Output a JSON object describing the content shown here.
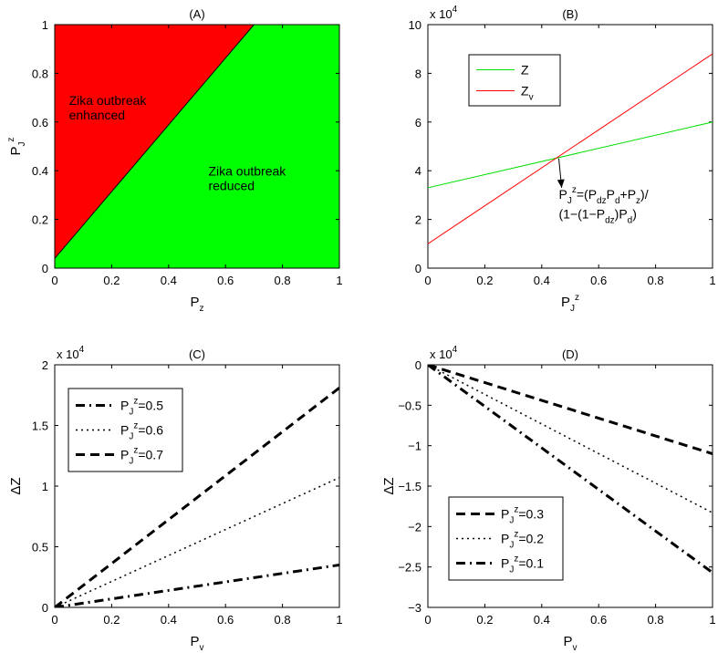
{
  "chart_data": [
    {
      "type": "area",
      "title": "(A)",
      "xlabel": "P",
      "xlabel_sub": "z",
      "ylabel": "P",
      "ylabel_sub": "J",
      "ylabel_sup": "z",
      "xlim": [
        0,
        1
      ],
      "ylim": [
        0,
        1
      ],
      "xticks": [
        0,
        0.2,
        0.4,
        0.6,
        0.8,
        1
      ],
      "yticks": [
        0,
        0.2,
        0.4,
        0.6,
        0.8,
        1
      ],
      "tick_labels_x": [
        "0",
        "0.2",
        "0.4",
        "0.6",
        "0.8",
        "1"
      ],
      "tick_labels_y": [
        "0",
        "0.2",
        "0.4",
        "0.6",
        "0.8",
        "1"
      ],
      "boundary": {
        "x": [
          0,
          0.7
        ],
        "y": [
          0.04,
          1
        ]
      },
      "regions": [
        {
          "name": "upper",
          "color": "#ff0000",
          "label_lines": [
            "Zika outbreak",
            "enhanced"
          ]
        },
        {
          "name": "lower",
          "color": "#00ff00",
          "label_lines": [
            "Zika outbreak",
            "reduced"
          ]
        }
      ]
    },
    {
      "type": "line",
      "title": "(B)",
      "multiplier": "x 10",
      "multiplier_exp": "4",
      "xlabel": "P",
      "xlabel_sub": "J",
      "xlabel_sup": "z",
      "xlim": [
        0,
        1
      ],
      "ylim": [
        0,
        10
      ],
      "xticks": [
        0,
        0.2,
        0.4,
        0.6,
        0.8,
        1
      ],
      "yticks": [
        0,
        2,
        4,
        6,
        8,
        10
      ],
      "tick_labels_x": [
        "0",
        "0.2",
        "0.4",
        "0.6",
        "0.8",
        "1"
      ],
      "tick_labels_y": [
        "0",
        "2",
        "4",
        "6",
        "8",
        "10"
      ],
      "legend_position": "top-left",
      "series": [
        {
          "name": "Z",
          "x": [
            0,
            1
          ],
          "values": [
            3.3,
            6.0
          ],
          "color": "#00dd00",
          "style": "solid"
        },
        {
          "name": "Z",
          "name_sub": "v",
          "x": [
            0,
            1
          ],
          "values": [
            1.0,
            8.8
          ],
          "color": "#ff0000",
          "style": "solid"
        }
      ],
      "annotation": {
        "point": [
          0.46,
          4.5
        ],
        "line1": {
          "a": "P",
          "a_sub": "J",
          "a_sup": "z",
          "b": "=(P",
          "c_sub": "dz",
          "d": "P",
          "d_sub": "d",
          "e": "+P",
          "e_sub": "z",
          "f": ")/"
        },
        "line2": {
          "a": "(1−(1−P",
          "a_sub": "dz",
          "b": ")P",
          "b_sub": "d",
          "c": ")"
        }
      }
    },
    {
      "type": "line",
      "title": "(C)",
      "multiplier": "x 10",
      "multiplier_exp": "4",
      "xlabel": "P",
      "xlabel_sub": "v",
      "ylabel": "ΔZ",
      "xlim": [
        0,
        1
      ],
      "ylim": [
        0,
        2
      ],
      "xticks": [
        0,
        0.2,
        0.4,
        0.6,
        0.8,
        1
      ],
      "yticks": [
        0,
        0.5,
        1,
        1.5,
        2
      ],
      "tick_labels_x": [
        "0",
        "0.2",
        "0.4",
        "0.6",
        "0.8",
        "1"
      ],
      "tick_labels_y": [
        "0",
        "0.5",
        "1",
        "1.5",
        "2"
      ],
      "legend_position": "top-left",
      "series": [
        {
          "name": "=0.5",
          "x": [
            0,
            1
          ],
          "values": [
            0,
            0.35
          ],
          "style": "dashdot"
        },
        {
          "name": "=0.6",
          "x": [
            0,
            1
          ],
          "values": [
            0,
            1.07
          ],
          "style": "dotted"
        },
        {
          "name": "=0.7",
          "x": [
            0,
            1
          ],
          "values": [
            0,
            1.81
          ],
          "style": "dashed"
        }
      ]
    },
    {
      "type": "line",
      "title": "(D)",
      "multiplier": "x 10",
      "multiplier_exp": "4",
      "xlabel": "P",
      "xlabel_sub": "v",
      "ylabel": "ΔZ",
      "xlim": [
        0,
        1
      ],
      "ylim": [
        -3,
        0
      ],
      "xticks": [
        0,
        0.2,
        0.4,
        0.6,
        0.8,
        1
      ],
      "yticks": [
        -3,
        -2.5,
        -2,
        -1.5,
        -1,
        -0.5,
        0
      ],
      "tick_labels_x": [
        "0",
        "0.2",
        "0.4",
        "0.6",
        "0.8",
        "1"
      ],
      "tick_labels_y": [
        "−3",
        "−2.5",
        "−2",
        "−1.5",
        "−1",
        "−0.5",
        "0"
      ],
      "legend_position": "bottom-left",
      "series": [
        {
          "name": "=0.3",
          "x": [
            0,
            1
          ],
          "values": [
            0,
            -1.1
          ],
          "style": "dashed"
        },
        {
          "name": "=0.2",
          "x": [
            0,
            1
          ],
          "values": [
            0,
            -1.83
          ],
          "style": "dotted"
        },
        {
          "name": "=0.1",
          "x": [
            0,
            1
          ],
          "values": [
            0,
            -2.57
          ],
          "style": "dashdot"
        }
      ]
    }
  ]
}
